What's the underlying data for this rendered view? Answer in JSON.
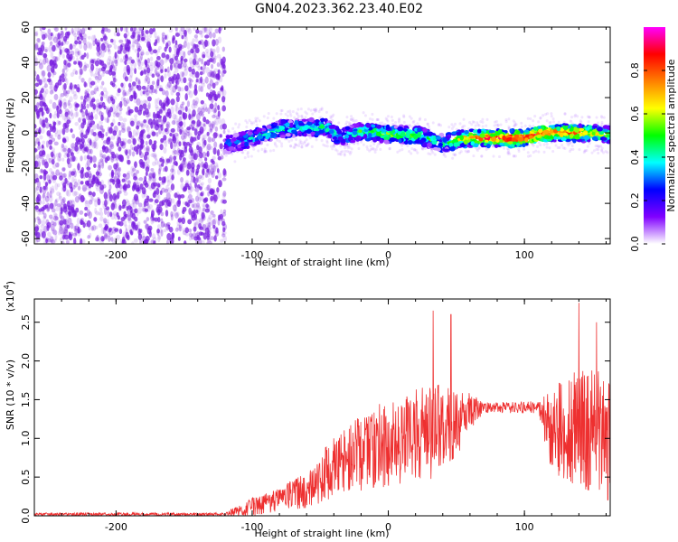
{
  "title": "GN04.2023.362.23.40.E02",
  "colors": {
    "snr_line": "#ee3030",
    "spectrogram_noise": "#7a1fe0",
    "axis": "#000000"
  },
  "colorbar": {
    "label": "Normalized spectral amplitude",
    "range": [
      0,
      1
    ],
    "ticks": [
      {
        "value": 0.0,
        "label": "0.0"
      },
      {
        "value": 0.2,
        "label": "0.2"
      },
      {
        "value": 0.4,
        "label": "0.4"
      },
      {
        "value": 0.6,
        "label": "0.6"
      },
      {
        "value": 0.8,
        "label": "0.8"
      }
    ],
    "stops": [
      "#ff00ff",
      "#ff0000",
      "#ff8000",
      "#ffff00",
      "#00ff00",
      "#00ffff",
      "#0000ff",
      "#8000ff",
      "#ffffff"
    ]
  },
  "chart_data": [
    {
      "type": "heatmap",
      "xlabel": "Height of straight line (km)",
      "ylabel": "Frequency (Hz)",
      "xlim": [
        -260,
        163
      ],
      "ylim": [
        -63,
        60
      ],
      "x_ticks": [
        {
          "value": -200,
          "label": "-200"
        },
        {
          "value": -100,
          "label": "-100"
        },
        {
          "value": 0,
          "label": "0"
        },
        {
          "value": 100,
          "label": "100"
        }
      ],
      "y_ticks": [
        {
          "value": -60,
          "label": "-60"
        },
        {
          "value": -40,
          "label": "-40"
        },
        {
          "value": -20,
          "label": "-20"
        },
        {
          "value": 0,
          "label": "0"
        },
        {
          "value": 20,
          "label": "20"
        },
        {
          "value": 40,
          "label": "40"
        },
        {
          "value": 60,
          "label": "60"
        }
      ],
      "noise_region_x": [
        -260,
        -120
      ],
      "ridge": [
        {
          "x": -120,
          "y": -7,
          "amp": 0.22
        },
        {
          "x": -100,
          "y": -3,
          "amp": 0.35
        },
        {
          "x": -80,
          "y": 2,
          "amp": 0.4
        },
        {
          "x": -60,
          "y": 3,
          "amp": 0.35
        },
        {
          "x": -45,
          "y": 3,
          "amp": 0.42
        },
        {
          "x": -35,
          "y": -3,
          "amp": 0.3
        },
        {
          "x": -20,
          "y": 1,
          "amp": 0.45
        },
        {
          "x": 0,
          "y": -1,
          "amp": 0.55
        },
        {
          "x": 20,
          "y": -1,
          "amp": 0.5
        },
        {
          "x": 40,
          "y": -6,
          "amp": 0.4
        },
        {
          "x": 55,
          "y": -3,
          "amp": 0.65
        },
        {
          "x": 75,
          "y": -3,
          "amp": 0.85
        },
        {
          "x": 100,
          "y": -3,
          "amp": 0.9
        },
        {
          "x": 115,
          "y": 0,
          "amp": 0.8
        },
        {
          "x": 140,
          "y": 0,
          "amp": 0.75
        },
        {
          "x": 163,
          "y": -1,
          "amp": 0.5
        }
      ]
    },
    {
      "type": "line",
      "xlabel": "Height of straight line (km)",
      "ylabel": "SNR (10 * v/v)",
      "y_multiplier": "(x10",
      "y_multiplier_exp": "4",
      "y_multiplier_close": ")",
      "xlim": [
        -260,
        163
      ],
      "ylim": [
        0,
        2.8
      ],
      "x_ticks": [
        {
          "value": -200,
          "label": "-200"
        },
        {
          "value": -100,
          "label": "-100"
        },
        {
          "value": 0,
          "label": "0"
        },
        {
          "value": 100,
          "label": "100"
        }
      ],
      "y_ticks": [
        {
          "value": 0.0,
          "label": "0.0"
        },
        {
          "value": 0.5,
          "label": "0.5"
        },
        {
          "value": 1.0,
          "label": "1.0"
        },
        {
          "value": 1.5,
          "label": "1.5"
        },
        {
          "value": 2.0,
          "label": "2.0"
        },
        {
          "value": 2.5,
          "label": "2.5"
        }
      ],
      "series": [
        {
          "envelope": [
            {
              "x": -260,
              "mean": 0.02,
              "spread": 0.02
            },
            {
              "x": -120,
              "mean": 0.02,
              "spread": 0.02
            },
            {
              "x": -100,
              "mean": 0.12,
              "spread": 0.12
            },
            {
              "x": -80,
              "mean": 0.2,
              "spread": 0.15
            },
            {
              "x": -60,
              "mean": 0.35,
              "spread": 0.25
            },
            {
              "x": -45,
              "mean": 0.55,
              "spread": 0.35
            },
            {
              "x": -30,
              "mean": 0.7,
              "spread": 0.45
            },
            {
              "x": -10,
              "mean": 0.9,
              "spread": 0.55
            },
            {
              "x": 10,
              "mean": 1.0,
              "spread": 0.6
            },
            {
              "x": 30,
              "mean": 1.1,
              "spread": 0.65
            },
            {
              "x": 50,
              "mean": 1.2,
              "spread": 0.45
            },
            {
              "x": 60,
              "mean": 1.35,
              "spread": 0.25
            },
            {
              "x": 70,
              "mean": 1.4,
              "spread": 0.07
            },
            {
              "x": 110,
              "mean": 1.4,
              "spread": 0.08
            },
            {
              "x": 120,
              "mean": 1.1,
              "spread": 0.55
            },
            {
              "x": 140,
              "mean": 1.1,
              "spread": 0.8
            },
            {
              "x": 163,
              "mean": 1.0,
              "spread": 0.85
            }
          ],
          "peaks": [
            {
              "x": -46,
              "y": 0.88
            },
            {
              "x": -40,
              "y": 1.0
            },
            {
              "x": 33,
              "y": 2.65
            },
            {
              "x": 46,
              "y": 2.6
            },
            {
              "x": 140,
              "y": 2.75
            },
            {
              "x": 153,
              "y": 2.5
            }
          ]
        }
      ]
    }
  ]
}
